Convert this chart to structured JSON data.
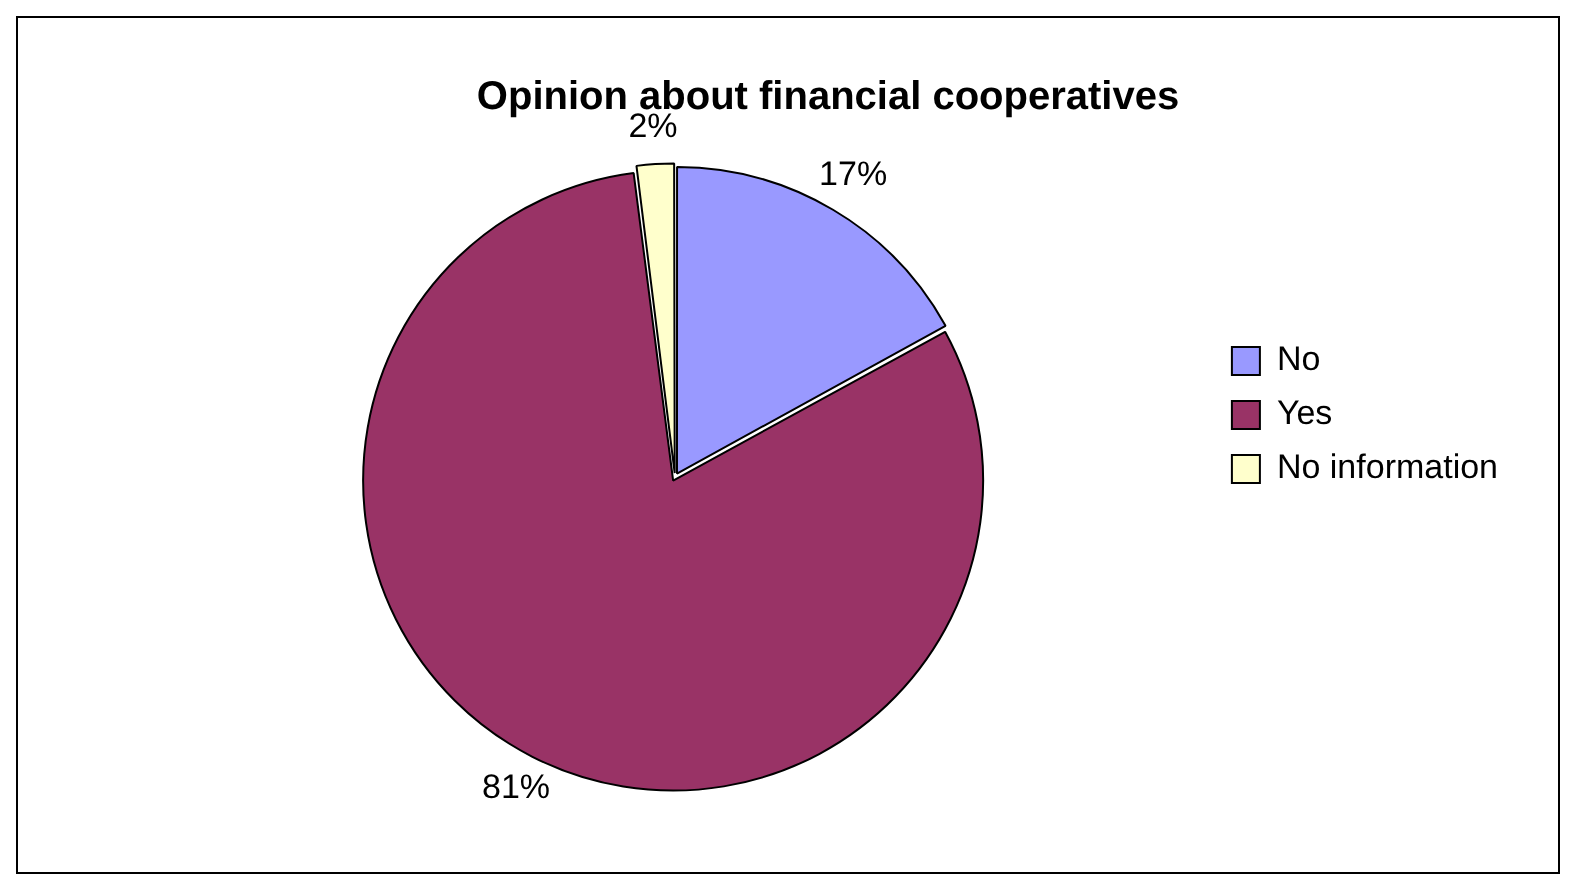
{
  "chart_data": {
    "type": "pie",
    "title": "Opinion about financial cooperatives",
    "categories": [
      "No",
      "Yes",
      "No information"
    ],
    "values": [
      17,
      81,
      2
    ],
    "colors": [
      "#9999ff",
      "#993366",
      "#ffffcc"
    ],
    "value_labels": [
      "17%",
      "81%",
      "2%"
    ],
    "legend": "right"
  }
}
